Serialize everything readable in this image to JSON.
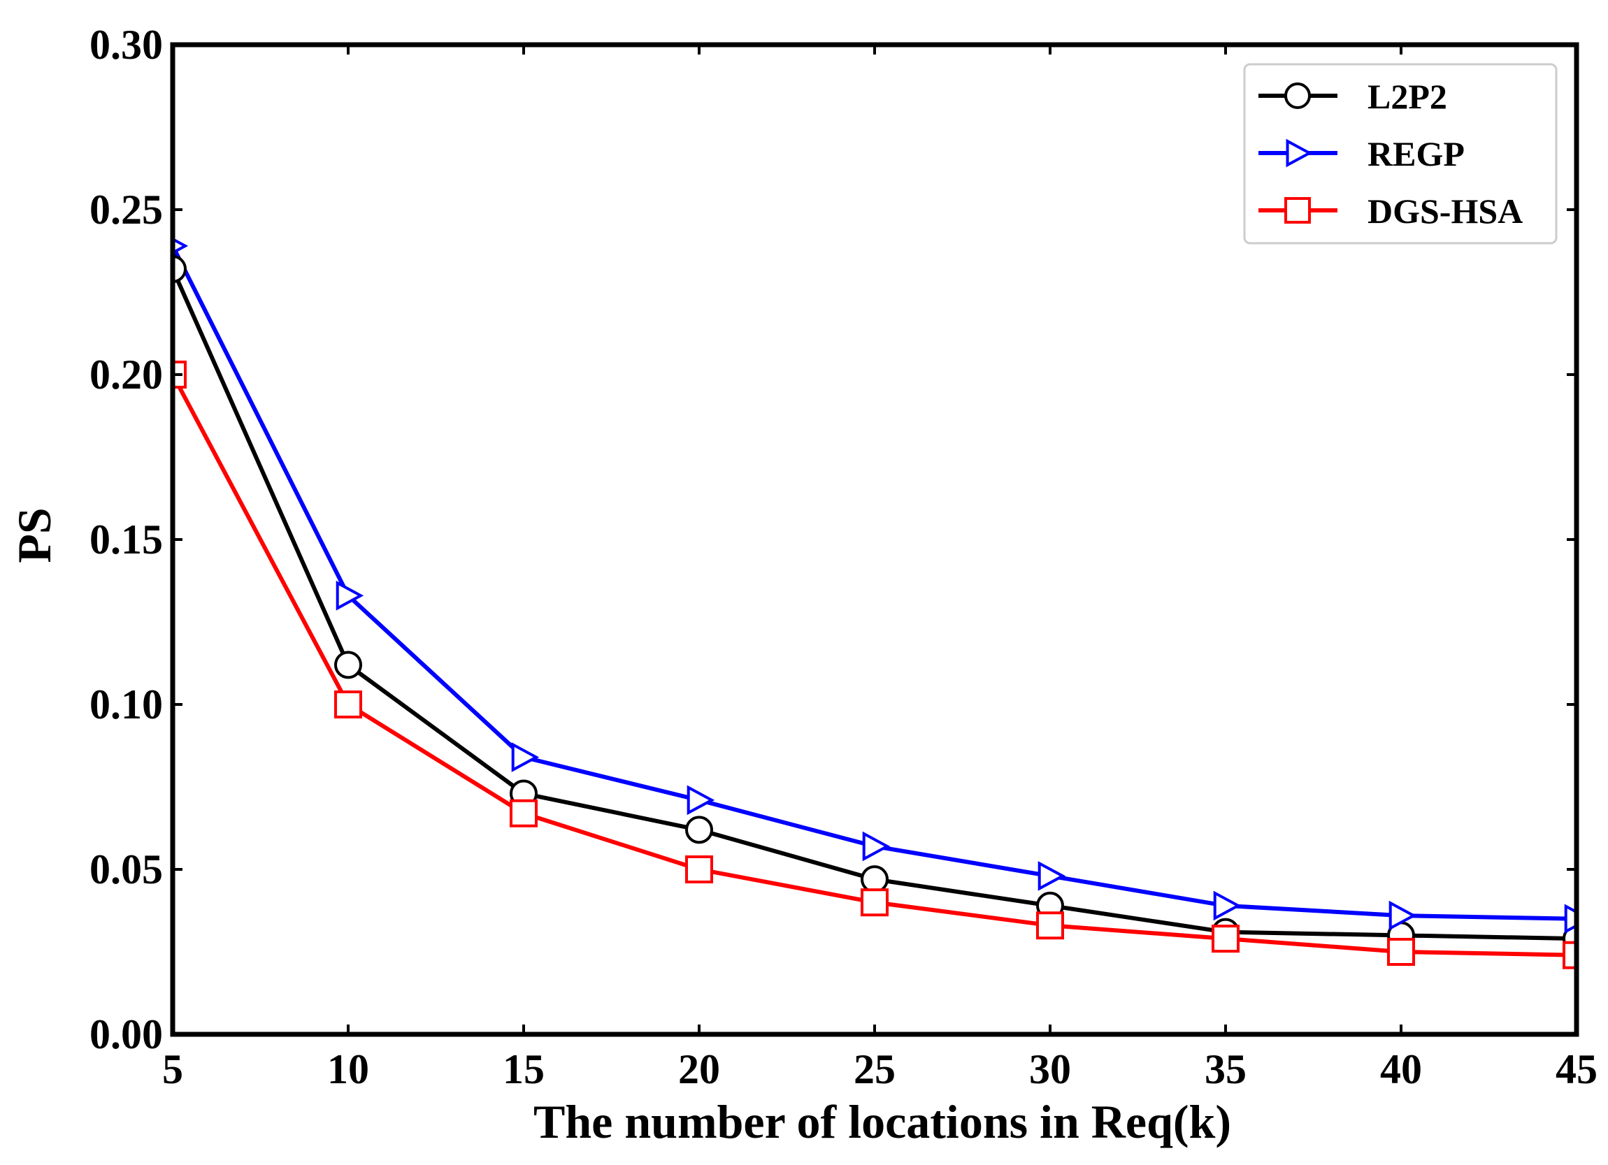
{
  "chart_data": {
    "type": "line",
    "title": "",
    "xlabel": "The number of locations in Req(k)",
    "ylabel": "PS",
    "xlim": [
      5,
      45
    ],
    "ylim": [
      0.0,
      0.3
    ],
    "x": [
      5,
      10,
      15,
      20,
      25,
      30,
      35,
      40,
      45
    ],
    "x_ticks": [
      5,
      10,
      15,
      20,
      25,
      30,
      35,
      40,
      45
    ],
    "x_tick_labels": [
      "5",
      "10",
      "15",
      "20",
      "25",
      "30",
      "35",
      "40",
      "45"
    ],
    "y_ticks": [
      0.0,
      0.05,
      0.1,
      0.15,
      0.2,
      0.25,
      0.3
    ],
    "y_tick_labels": [
      "0.00",
      "0.05",
      "0.10",
      "0.15",
      "0.20",
      "0.25",
      "0.30"
    ],
    "grid": false,
    "legend_position": "top-right",
    "series": [
      {
        "name": "L2P2",
        "color": "#000000",
        "marker": "circle",
        "values": [
          0.232,
          0.112,
          0.073,
          0.062,
          0.047,
          0.039,
          0.031,
          0.03,
          0.029
        ]
      },
      {
        "name": "REGP",
        "color": "#0000ff",
        "marker": "triangle-right",
        "values": [
          0.239,
          0.133,
          0.084,
          0.071,
          0.057,
          0.048,
          0.039,
          0.036,
          0.035
        ]
      },
      {
        "name": "DGS-HSA",
        "color": "#ff0000",
        "marker": "square",
        "values": [
          0.2,
          0.1,
          0.067,
          0.05,
          0.04,
          0.033,
          0.029,
          0.025,
          0.024
        ]
      }
    ]
  }
}
